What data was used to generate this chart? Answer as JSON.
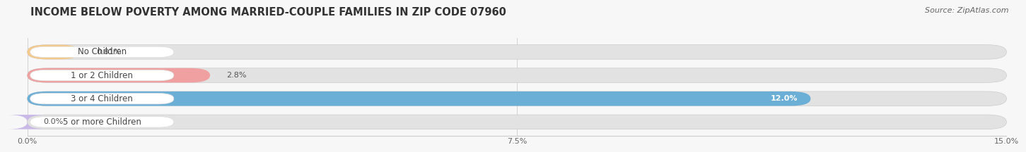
{
  "title": "INCOME BELOW POVERTY AMONG MARRIED-COUPLE FAMILIES IN ZIP CODE 07960",
  "source": "Source: ZipAtlas.com",
  "categories": [
    "No Children",
    "1 or 2 Children",
    "3 or 4 Children",
    "5 or more Children"
  ],
  "values": [
    0.81,
    2.8,
    12.0,
    0.0
  ],
  "value_labels": [
    "0.81%",
    "2.8%",
    "12.0%",
    "0.0%"
  ],
  "bar_colors": [
    "#f5c98a",
    "#f0a0a0",
    "#6baed6",
    "#c9b8e8"
  ],
  "label_text_color": "#444444",
  "value_color_inside": "#ffffff",
  "value_color_outside": "#555555",
  "xlim_max": 15.0,
  "xticks": [
    0.0,
    7.5,
    15.0
  ],
  "xtick_labels": [
    "0.0%",
    "7.5%",
    "15.0%"
  ],
  "bar_height": 0.62,
  "background_color": "#f7f7f7",
  "bar_bg_color": "#e2e2e2",
  "title_fontsize": 10.5,
  "source_fontsize": 8,
  "label_fontsize": 8.5,
  "value_fontsize": 8,
  "tick_fontsize": 8,
  "inside_threshold": 10.0
}
